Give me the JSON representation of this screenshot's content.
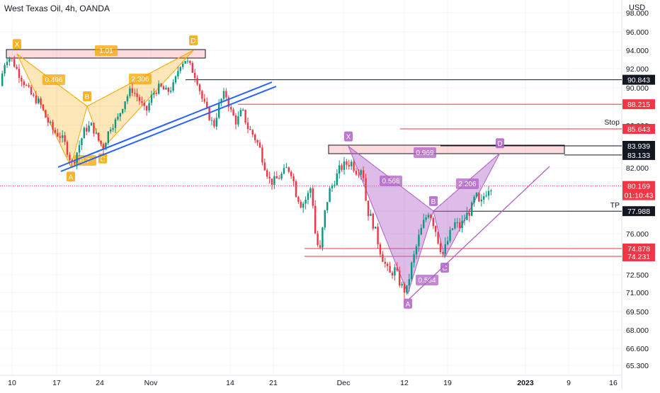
{
  "header": {
    "symbol": "West Texas Oil",
    "timeframe": "4h",
    "broker": "OANDA",
    "currency": "USD"
  },
  "chart_data": {
    "type": "candlestick",
    "title": "West Texas Oil, 4h, OANDA",
    "ylabel": "USD",
    "ylim": [
      64.4,
      99.5
    ],
    "y_ticks": [
      "98.000",
      "96.000",
      "94.000",
      "92.000",
      "90.000",
      "88.000",
      "86.000",
      "84.000",
      "82.000",
      "80.000",
      "78.000",
      "76.000",
      "74.500",
      "72.500",
      "71.000",
      "69.500",
      "68.000",
      "66.600",
      "65.300"
    ],
    "y_tick_values": [
      98,
      96,
      94,
      92,
      90,
      88,
      86,
      84,
      82,
      80,
      78,
      76,
      74.5,
      72.5,
      71,
      69.5,
      68,
      66.6,
      65.3
    ],
    "x_ticks": [
      "10",
      "17",
      "24",
      "Nov",
      "14",
      "21",
      "Dec",
      "12",
      "19",
      "2023",
      "9",
      "16"
    ],
    "current_price": {
      "value": "80.169",
      "countdown": "01:10:43",
      "color": "#f23645"
    },
    "price_labels": [
      {
        "value": "90.843",
        "style": "dark"
      },
      {
        "value": "88.215",
        "style": "red"
      },
      {
        "value": "85.643",
        "style": "red"
      },
      {
        "value": "83.939",
        "style": "dark"
      },
      {
        "value": "83.133",
        "style": "dark"
      },
      {
        "value": "77.988",
        "style": "dark"
      },
      {
        "value": "74.878",
        "style": "red"
      },
      {
        "value": "74.231",
        "style": "red"
      }
    ],
    "line_labels": {
      "stop": "Stop",
      "tp": "TP"
    },
    "patterns": [
      {
        "color": "#f7a600",
        "points": [
          {
            "label": "X",
            "price": 93.6
          },
          {
            "label": "A",
            "price": 82.1
          },
          {
            "label": "B",
            "price": 88.0
          },
          {
            "label": "C",
            "price": 83.7
          },
          {
            "label": "D",
            "price": 94.0
          }
        ],
        "ratios": [
          "0.496",
          "2.306",
          "1.01",
          "0.7"
        ]
      },
      {
        "color": "#b05fc9",
        "points": [
          {
            "label": "X",
            "price": 83.9
          },
          {
            "label": "A",
            "price": 70.9
          },
          {
            "label": "B",
            "price": 78.0
          },
          {
            "label": "C",
            "price": 74.1
          },
          {
            "label": "D",
            "price": 83.3
          }
        ],
        "ratios": [
          "0.568",
          "2.206",
          "0.969",
          "0.564"
        ]
      }
    ],
    "colors": {
      "up": "#089981",
      "down": "#f23645",
      "channel": "#2962ff"
    }
  }
}
